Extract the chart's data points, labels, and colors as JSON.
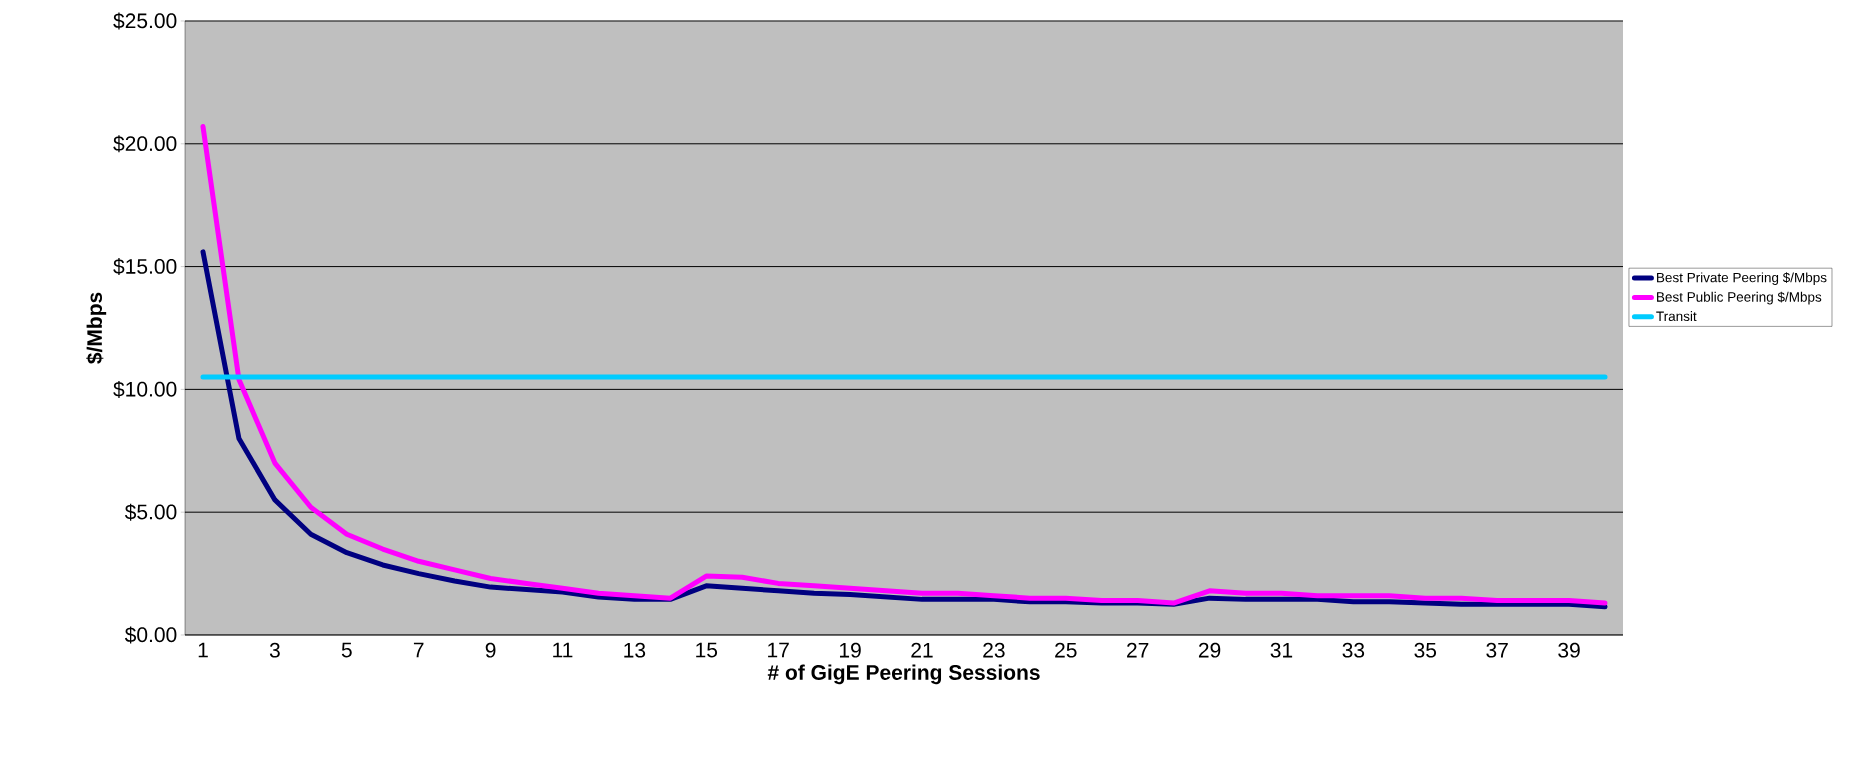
{
  "chart_data": {
    "type": "line",
    "xlabel": "# of GigE Peering Sessions",
    "ylabel": "$/Mbps",
    "categories": [
      "1",
      null,
      "3",
      null,
      "5",
      null,
      "7",
      null,
      "9",
      null,
      "11",
      null,
      "13",
      null,
      "15",
      null,
      "17",
      null,
      "19",
      null,
      "21",
      null,
      "23",
      null,
      "25",
      null,
      "27",
      null,
      "29",
      null,
      "31",
      null,
      "33",
      null,
      "35",
      null,
      "37",
      null,
      "39",
      null
    ],
    "series": [
      {
        "name": "Best Private Peering  $/Mbps",
        "color": "#000080",
        "values": [
          15.6,
          8.0,
          5.5,
          4.1,
          3.35,
          2.85,
          2.5,
          2.2,
          1.95,
          1.85,
          1.75,
          1.55,
          1.45,
          1.45,
          2.0,
          1.9,
          1.8,
          1.7,
          1.65,
          1.55,
          1.45,
          1.45,
          1.45,
          1.35,
          1.35,
          1.3,
          1.3,
          1.25,
          1.5,
          1.45,
          1.45,
          1.45,
          1.35,
          1.35,
          1.3,
          1.25,
          1.25,
          1.25,
          1.25,
          1.15
        ]
      },
      {
        "name": "Best Public Peering $/Mbps",
        "color": "#ff00ff",
        "values": [
          20.7,
          10.4,
          7.0,
          5.2,
          4.1,
          3.5,
          3.0,
          2.65,
          2.3,
          2.1,
          1.9,
          1.7,
          1.6,
          1.5,
          2.4,
          2.35,
          2.1,
          2.0,
          1.9,
          1.8,
          1.7,
          1.7,
          1.6,
          1.5,
          1.5,
          1.4,
          1.4,
          1.3,
          1.8,
          1.7,
          1.7,
          1.6,
          1.6,
          1.6,
          1.5,
          1.5,
          1.4,
          1.4,
          1.4,
          1.3
        ]
      },
      {
        "name": "Transit",
        "color": "#00ccff",
        "values": [
          10.5,
          10.5,
          10.5,
          10.5,
          10.5,
          10.5,
          10.5,
          10.5,
          10.5,
          10.5,
          10.5,
          10.5,
          10.5,
          10.5,
          10.5,
          10.5,
          10.5,
          10.5,
          10.5,
          10.5,
          10.5,
          10.5,
          10.5,
          10.5,
          10.5,
          10.5,
          10.5,
          10.5,
          10.5,
          10.5,
          10.5,
          10.5,
          10.5,
          10.5,
          10.5,
          10.5,
          10.5,
          10.5,
          10.5,
          10.5
        ]
      }
    ],
    "ylim": [
      0,
      25
    ],
    "yticks": [
      {
        "value": 0,
        "label": "$0.00"
      },
      {
        "value": 5,
        "label": "$5.00"
      },
      {
        "value": 10,
        "label": "$10.00"
      },
      {
        "value": 15,
        "label": "$15.00"
      },
      {
        "value": 20,
        "label": "$20.00"
      },
      {
        "value": 25,
        "label": "$25.00"
      }
    ],
    "grid": "y",
    "legend": "right",
    "marker": "none",
    "line_style": "solid"
  }
}
